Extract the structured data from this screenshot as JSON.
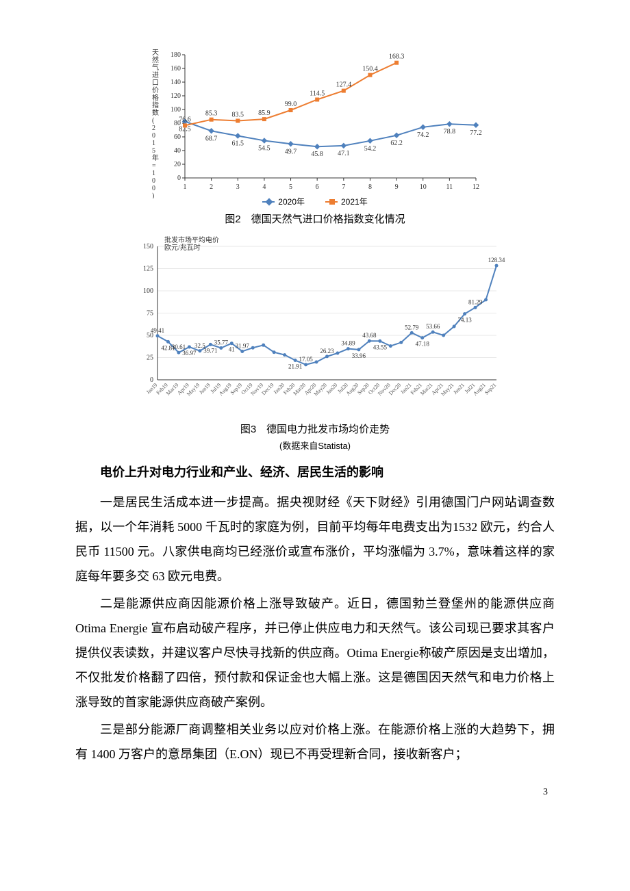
{
  "chart2": {
    "type": "line",
    "y_axis_label": "天然气进口价格指数(2015年=100)",
    "caption": "图2　德国天然气进口价格指数变化情况",
    "x_ticks": [
      1,
      2,
      3,
      4,
      5,
      6,
      7,
      8,
      9,
      10,
      11,
      12
    ],
    "ylim": [
      0,
      180
    ],
    "ytick_step": 20,
    "series": [
      {
        "name": "2020年",
        "color": "#4f81bd",
        "marker": "diamond",
        "values": [
          82.5,
          68.7,
          61.5,
          54.5,
          49.7,
          45.8,
          47.1,
          54.2,
          62.2,
          74.2,
          78.8,
          77.2
        ],
        "labels": [
          "82.5",
          "68.7",
          "61.5",
          "54.5",
          "49.7",
          "45.8",
          "47.1",
          "54.2",
          "62.2",
          "74.2",
          "78.8",
          "77.2"
        ]
      },
      {
        "name": "2021年",
        "color": "#ed7d31",
        "marker": "square",
        "values": [
          76.6,
          85.3,
          83.5,
          85.9,
          99.0,
          114.5,
          127.4,
          150.4,
          168.3
        ],
        "labels": [
          "76.6",
          "85.3",
          "83.5",
          "85.9",
          "99.0",
          "114.5",
          "127.4",
          "150.4",
          "168.3"
        ]
      }
    ],
    "background_color": "#ffffff",
    "axis_color": "#333333",
    "label_fontsize": 10,
    "legend": [
      "2020年",
      "2021年"
    ]
  },
  "chart3": {
    "type": "line",
    "y_axis_label": "批发市场平均电价\n欧元/兆瓦时",
    "caption": "图3　德国电力批发市场均价走势",
    "subcaption": "(数据来自Statista)",
    "x_labels": [
      "Jan19",
      "Feb19",
      "Mar19",
      "Apr19",
      "May19",
      "Jun19",
      "Jul19",
      "Aug19",
      "Sep19",
      "Oct19",
      "Nov19",
      "Dec19",
      "Jan20",
      "Feb20",
      "Mar20",
      "Apr20",
      "May20",
      "Jun20",
      "Jul20",
      "Aug20",
      "Sep20",
      "Oct20",
      "Nov20",
      "Dec20",
      "Jan21",
      "Feb21",
      "Mar21",
      "Apr21",
      "May21",
      "Jun21",
      "Jul21",
      "Aug21",
      "Sep21"
    ],
    "ylim": [
      0,
      150
    ],
    "yticks": [
      0,
      25,
      50,
      75,
      100,
      125,
      150
    ],
    "series": [
      {
        "name": "price",
        "color": "#4f81bd",
        "marker": "circle",
        "values": [
          49.41,
          42.81,
          30.61,
          36.97,
          32.5,
          39.71,
          35.77,
          41,
          31.97,
          36,
          39,
          31,
          28,
          21.91,
          17.05,
          20,
          26.23,
          30,
          34.89,
          33.96,
          43.68,
          43.55,
          38,
          42,
          52.79,
          47.18,
          53.66,
          50,
          60,
          74.13,
          81.29,
          90,
          128.34
        ],
        "labels": [
          "49.41",
          "42.81",
          "30.61",
          "36.97",
          "32.5",
          "39.71",
          "35.77",
          "41",
          "31.97",
          "",
          "",
          "",
          "",
          "21.91",
          "17.05",
          "",
          "26.23",
          "",
          "34.89",
          "33.96",
          "43.68",
          "43.55",
          "",
          "",
          "52.79",
          "47.18",
          "53.66",
          "",
          "",
          "74.13",
          "81.29",
          "",
          "128.34"
        ]
      }
    ],
    "background_color": "#ffffff",
    "grid_color": "#d0d0d0",
    "axis_color": "#333333",
    "label_fontsize": 9
  },
  "body": {
    "section_title": "电价上升对电力行业和产业、经济、居民生活的影响",
    "p1": "一是居民生活成本进一步提高。据央视财经《天下财经》引用德国门户网站调查数据，以一个年消耗 5000 千瓦时的家庭为例，目前平均每年电费支出为1532 欧元，约合人民币 11500 元。八家供电商均已经涨价或宣布涨价，平均涨幅为 3.7%，意味着这样的家庭每年要多交 63 欧元电费。",
    "p2": "二是能源供应商因能源价格上涨导致破产。近日，德国勃兰登堡州的能源供应商 Otima Energie 宣布启动破产程序，并已停止供应电力和天然气。该公司现已要求其客户提供仪表读数，并建议客户尽快寻找新的供应商。Otima Energie称破产原因是支出增加，不仅批发价格翻了四倍，预付款和保证金也大幅上涨。这是德国因天然气和电力价格上涨导致的首家能源供应商破产案例。",
    "p3": "三是部分能源厂商调整相关业务以应对价格上涨。在能源价格上涨的大趋势下，拥有 1400 万客户的意昂集团（E.ON）现已不再受理新合同，接收新客户；",
    "page_number": "3"
  }
}
